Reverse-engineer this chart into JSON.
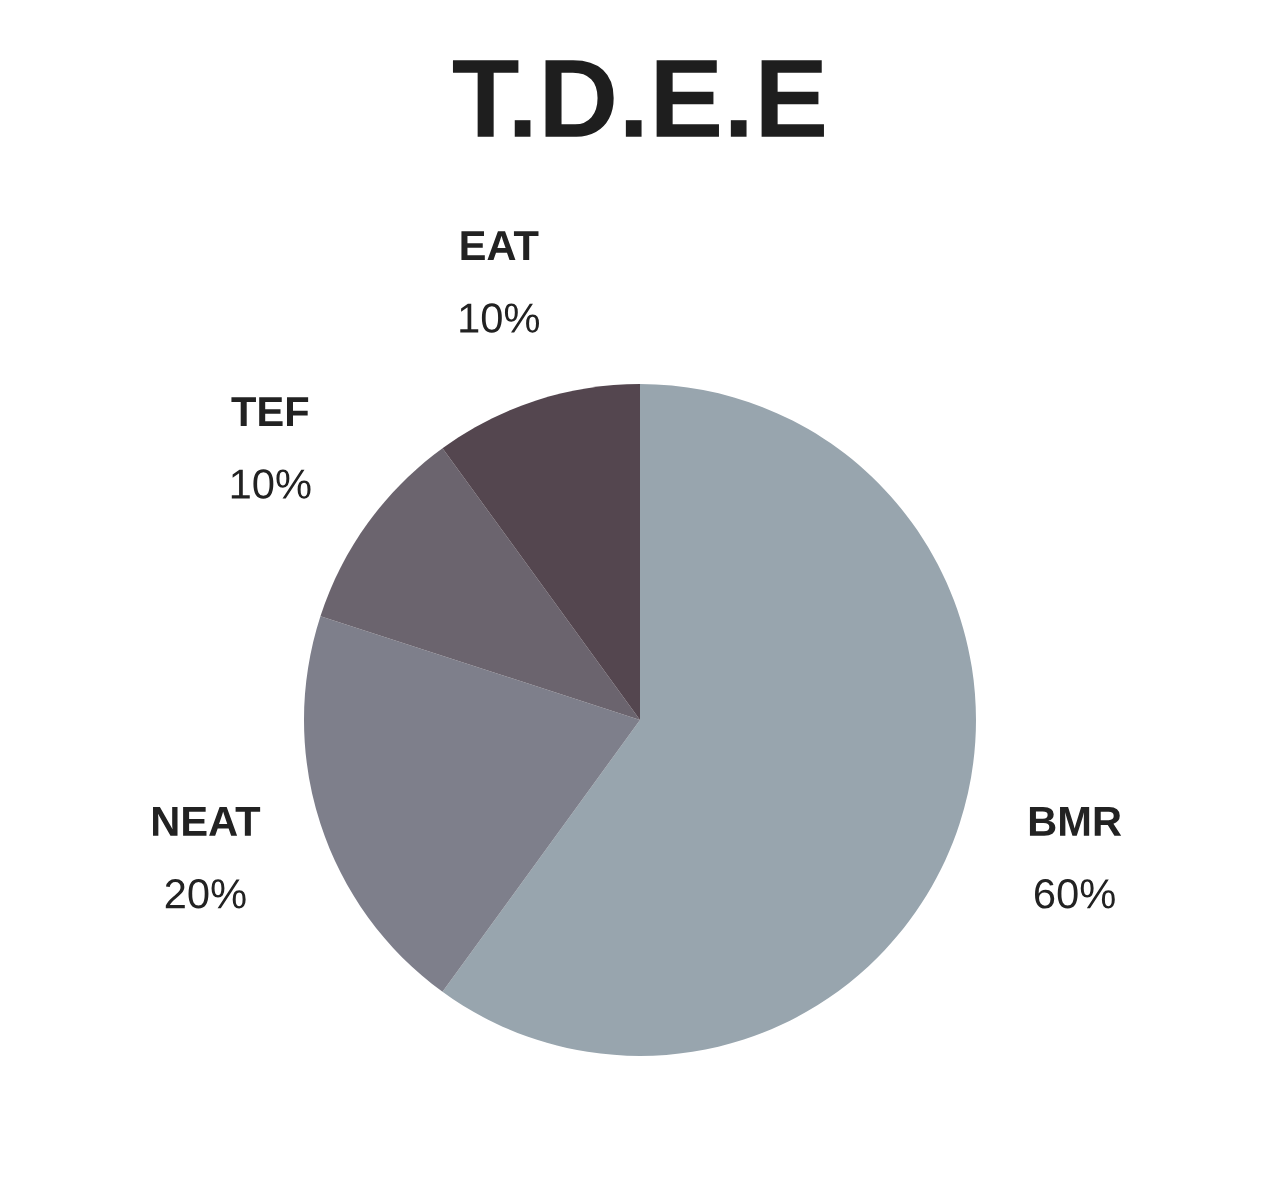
{
  "chart_data": {
    "type": "pie",
    "title": "T.D.E.E",
    "categories": [
      "BMR",
      "NEAT",
      "TEF",
      "EAT"
    ],
    "values": [
      60,
      20,
      10,
      10
    ],
    "value_labels": [
      "60%",
      "20%",
      "10%",
      "10%"
    ],
    "colors": [
      "#98a5ae",
      "#7e7f8b",
      "#6b646e",
      "#54464f"
    ]
  }
}
